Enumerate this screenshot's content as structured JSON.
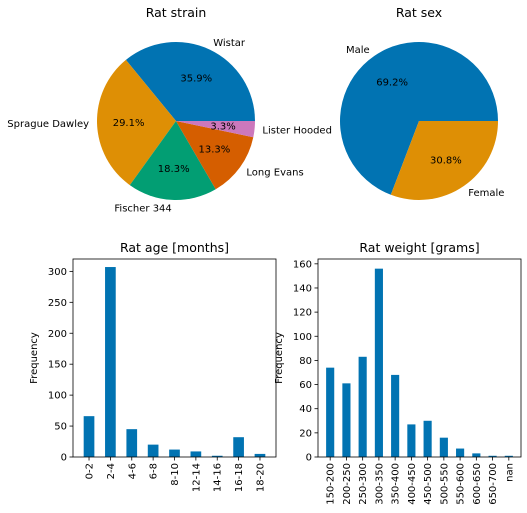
{
  "chart_data": [
    {
      "type": "pie",
      "title": "Rat strain",
      "labels": [
        "Wistar",
        "Sprague Dawley",
        "Fischer 344",
        "Long Evans",
        "Lister Hooded"
      ],
      "values": [
        35.9,
        29.1,
        18.3,
        13.3,
        3.3
      ],
      "pct_labels": [
        "35.9%",
        "29.1%",
        "18.3%",
        "13.3%",
        "3.3%"
      ],
      "colors": [
        "#0173b2",
        "#de8f05",
        "#029e73",
        "#d55e00",
        "#cc78bc"
      ]
    },
    {
      "type": "pie",
      "title": "Rat sex",
      "labels": [
        "Male",
        "Female"
      ],
      "values": [
        69.2,
        30.8
      ],
      "pct_labels": [
        "69.2%",
        "30.8%"
      ],
      "colors": [
        "#0173b2",
        "#de8f05"
      ]
    },
    {
      "type": "bar",
      "title": "Rat age [months]",
      "xlabel": "",
      "ylabel": "Frequency",
      "categories": [
        "0-2",
        "2-4",
        "4-6",
        "6-8",
        "8-10",
        "12-14",
        "14-16",
        "16-18",
        "18-20"
      ],
      "values": [
        66,
        307,
        45,
        20,
        12,
        9,
        2,
        32,
        5
      ],
      "ylim": [
        0,
        320
      ],
      "yticks": [
        0,
        50,
        100,
        150,
        200,
        250,
        300
      ],
      "color": "#0173b2"
    },
    {
      "type": "bar",
      "title": "Rat weight [grams]",
      "xlabel": "",
      "ylabel": "Frequency",
      "categories": [
        "150-200",
        "200-250",
        "250-300",
        "300-350",
        "350-400",
        "400-450",
        "450-500",
        "500-550",
        "550-600",
        "600-650",
        "650-700",
        "nan"
      ],
      "values": [
        74,
        61,
        83,
        156,
        68,
        27,
        30,
        16,
        7,
        3,
        1,
        1
      ],
      "ylim": [
        0,
        164
      ],
      "yticks": [
        0,
        20,
        40,
        60,
        80,
        100,
        120,
        140,
        160
      ],
      "color": "#0173b2"
    }
  ]
}
